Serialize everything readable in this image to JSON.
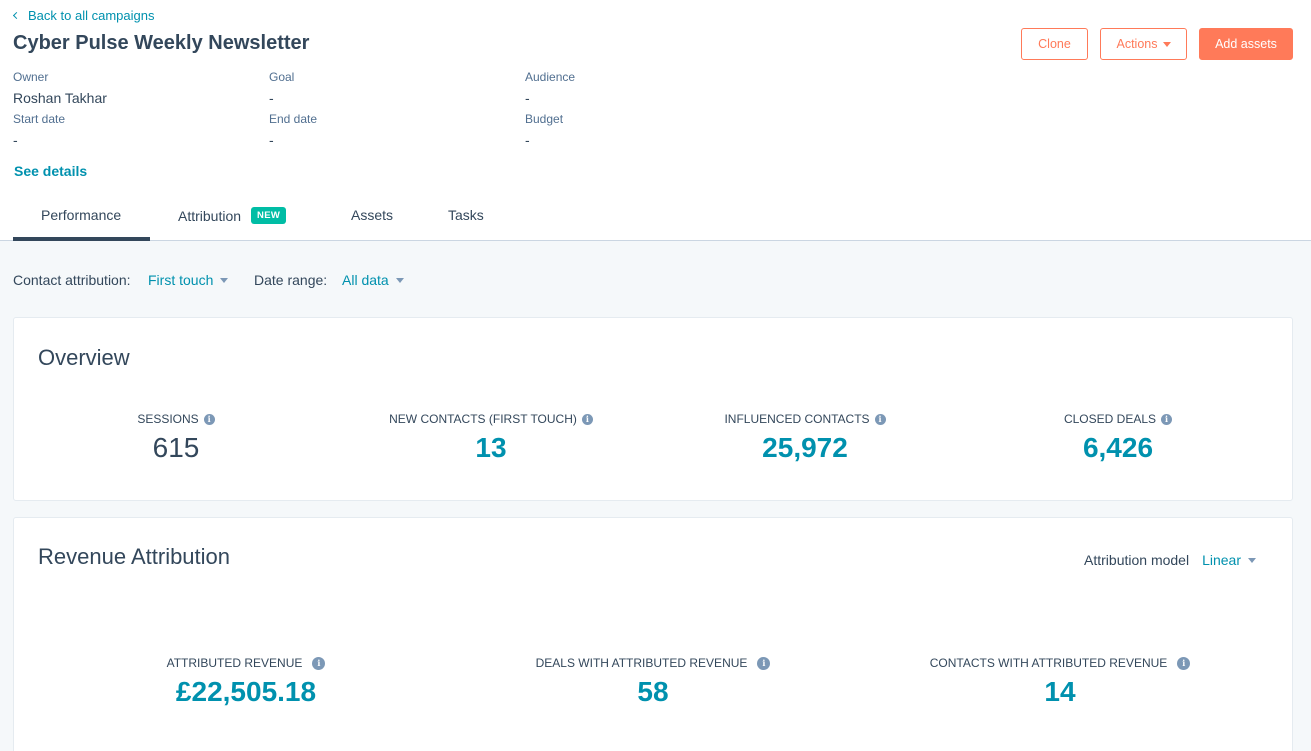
{
  "header": {
    "back_link": "Back to all campaigns",
    "title": "Cyber Pulse Weekly Newsletter",
    "buttons": {
      "clone": "Clone",
      "actions": "Actions",
      "add_assets": "Add assets"
    },
    "see_details": "See details"
  },
  "meta": {
    "owner_label": "Owner",
    "owner_value": "Roshan Takhar",
    "goal_label": "Goal",
    "goal_value": "-",
    "audience_label": "Audience",
    "audience_value": "-",
    "start_label": "Start date",
    "start_value": "-",
    "end_label": "End date",
    "end_value": "-",
    "budget_label": "Budget",
    "budget_value": "-"
  },
  "tabs": [
    {
      "label": "Performance",
      "active": true
    },
    {
      "label": "Attribution",
      "badge": "NEW"
    },
    {
      "label": "Assets"
    },
    {
      "label": "Tasks"
    }
  ],
  "filters": {
    "contact_attribution_label": "Contact attribution:",
    "contact_attribution_value": "First touch",
    "date_range_label": "Date range:",
    "date_range_value": "All data"
  },
  "overview": {
    "title": "Overview",
    "stats": [
      {
        "label": "SESSIONS",
        "value": "615"
      },
      {
        "label": "NEW CONTACTS (FIRST TOUCH)",
        "value": "13"
      },
      {
        "label": "INFLUENCED CONTACTS",
        "value": "25,972"
      },
      {
        "label": "CLOSED DEALS",
        "value": "6,426"
      }
    ]
  },
  "revenue": {
    "title": "Revenue Attribution",
    "model_label": "Attribution model",
    "model_value": "Linear",
    "stats": [
      {
        "label": "ATTRIBUTED REVENUE",
        "value": "£22,505.18"
      },
      {
        "label": "DEALS WITH ATTRIBUTED REVENUE",
        "value": "58"
      },
      {
        "label": "CONTACTS WITH ATTRIBUTED REVENUE",
        "value": "14"
      }
    ]
  },
  "colors": {
    "accent_teal": "#0091ae",
    "brand_orange": "#ff7a59",
    "text_dark": "#33475b",
    "badge_green": "#00bda5"
  },
  "icons": {
    "back": "chevron-left-icon",
    "info": "info-icon",
    "dropdown": "caret-down-icon"
  }
}
